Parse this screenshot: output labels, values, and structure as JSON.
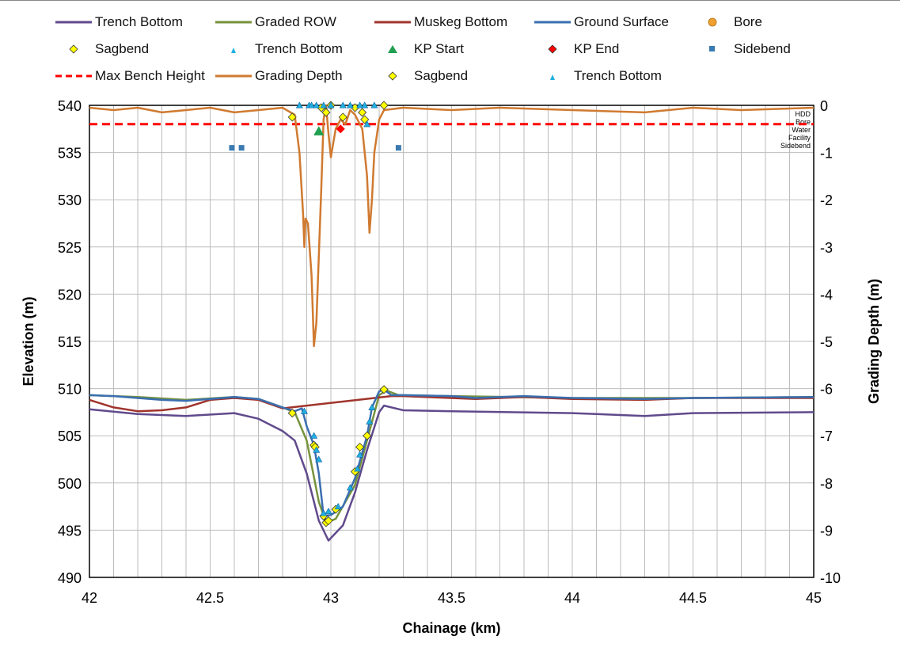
{
  "chart_data": {
    "type": "line",
    "xlabel": "Chainage (km)",
    "ylabel": "Elevation (m)",
    "y2label": "Grading Depth (m)",
    "xlim": [
      42,
      45
    ],
    "ylim": [
      490,
      540
    ],
    "y2lim": [
      -10,
      0
    ],
    "x_ticks": [
      "42",
      "42.5",
      "43",
      "43.5",
      "44",
      "44.5",
      "45"
    ],
    "y_ticks": [
      "540",
      "535",
      "530",
      "525",
      "520",
      "515",
      "510",
      "505",
      "500",
      "495",
      "490"
    ],
    "y2_ticks": [
      "0",
      "-1",
      "-2",
      "-3",
      "-4",
      "-5",
      "-6",
      "-7",
      "-8",
      "-9",
      "-10"
    ],
    "grid": true,
    "legend_position": "top",
    "annotations": [
      "HDD",
      "Bore",
      "Water",
      "Facility",
      "Sidebend"
    ],
    "series": [
      {
        "name": "Trench Bottom",
        "type": "line",
        "axis": "left",
        "color": "#604a8c",
        "x": [
          42.0,
          42.2,
          42.4,
          42.6,
          42.7,
          42.8,
          42.85,
          42.9,
          42.95,
          42.99,
          43.05,
          43.1,
          43.15,
          43.2,
          43.22,
          43.3,
          43.5,
          44.0,
          44.3,
          44.5,
          45.0
        ],
        "y": [
          507.8,
          507.3,
          507.1,
          507.4,
          506.8,
          505.5,
          504.5,
          501.0,
          496.0,
          493.9,
          495.5,
          499.0,
          503.5,
          507.5,
          508.2,
          507.7,
          507.6,
          507.4,
          507.1,
          507.4,
          507.5
        ]
      },
      {
        "name": "Graded ROW",
        "type": "line",
        "axis": "left",
        "color": "#77933c",
        "x": [
          42.0,
          42.2,
          42.4,
          42.6,
          42.7,
          42.8,
          42.85,
          42.9,
          42.95,
          42.98,
          43.02,
          43.1,
          43.15,
          43.2,
          43.23,
          43.28,
          43.5,
          44.0,
          44.5,
          45.0
        ],
        "y": [
          509.3,
          509.1,
          508.8,
          509.1,
          508.9,
          508.0,
          507.5,
          504.5,
          498.0,
          495.8,
          496.2,
          499.8,
          504.5,
          509.3,
          509.8,
          509.3,
          509.2,
          509.0,
          509.0,
          509.1
        ]
      },
      {
        "name": "Muskeg Bottom",
        "type": "line",
        "axis": "left",
        "color": "#a0342c",
        "x": [
          42.0,
          42.05,
          42.1,
          42.2,
          42.3,
          42.4,
          42.5,
          42.6,
          42.7,
          42.8,
          43.25,
          43.3,
          43.6,
          43.8,
          44.0,
          44.3,
          44.5,
          45.0
        ],
        "y": [
          508.8,
          508.4,
          508.0,
          507.6,
          507.7,
          508.0,
          508.8,
          509.0,
          508.8,
          507.9,
          509.2,
          509.2,
          508.9,
          509.1,
          508.9,
          508.8,
          509.0,
          509.0
        ]
      },
      {
        "name": "Ground Surface",
        "type": "line",
        "axis": "left",
        "color": "#3a6fb0",
        "x": [
          42.0,
          42.1,
          42.2,
          42.3,
          42.4,
          42.5,
          42.6,
          42.7,
          42.8,
          42.85,
          42.88,
          42.9,
          42.93,
          42.95,
          42.97,
          43.0,
          43.05,
          43.1,
          43.15,
          43.17,
          43.2,
          43.22,
          43.25,
          43.3,
          43.5,
          43.6,
          43.8,
          44.0,
          44.3,
          44.5,
          45.0
        ],
        "y": [
          509.3,
          509.2,
          509.0,
          508.8,
          508.7,
          508.9,
          509.1,
          508.9,
          508.0,
          507.6,
          507.9,
          506.0,
          504.0,
          501.0,
          496.5,
          496.6,
          497.5,
          500.5,
          505.0,
          508.0,
          509.7,
          509.9,
          509.3,
          509.3,
          509.2,
          509.0,
          509.2,
          509.0,
          508.9,
          509.0,
          509.1
        ]
      },
      {
        "name": "Max Bench Height",
        "type": "line",
        "axis": "right",
        "color": "#ff0000",
        "dashed": true,
        "x": [
          42.0,
          45.0
        ],
        "y": [
          -0.4,
          -0.4
        ]
      },
      {
        "name": "Grading Depth",
        "type": "line",
        "axis": "right",
        "color": "#d07a30",
        "x": [
          42.0,
          42.1,
          42.2,
          42.3,
          42.4,
          42.5,
          42.6,
          42.7,
          42.8,
          42.85,
          42.87,
          42.885,
          42.89,
          42.895,
          42.905,
          42.92,
          42.93,
          42.94,
          42.96,
          42.97,
          42.98,
          42.99,
          43.0,
          43.01,
          43.02,
          43.04,
          43.06,
          43.08,
          43.1,
          43.13,
          43.15,
          43.16,
          43.17,
          43.18,
          43.2,
          43.22,
          43.3,
          43.5,
          43.7,
          44.0,
          44.3,
          44.5,
          44.7,
          45.0
        ],
        "y": [
          -0.05,
          -0.1,
          -0.05,
          -0.15,
          -0.1,
          -0.05,
          -0.15,
          -0.1,
          -0.05,
          -0.2,
          -1.0,
          -2.3,
          -3.0,
          -2.4,
          -2.5,
          -3.6,
          -5.1,
          -4.6,
          -1.8,
          -0.3,
          0,
          -0.6,
          -1.1,
          -0.8,
          -0.5,
          -0.3,
          -0.4,
          -0.1,
          -0.2,
          -0.5,
          -1.5,
          -2.7,
          -2.0,
          -1.0,
          -0.3,
          -0.1,
          -0.05,
          -0.1,
          -0.05,
          -0.1,
          -0.15,
          -0.05,
          -0.1,
          -0.05
        ]
      },
      {
        "name": "Bore",
        "type": "scatter",
        "axis": "right",
        "color": "#f0a030",
        "x": [],
        "y": []
      },
      {
        "name": "Sagbend",
        "type": "scatter",
        "axis": "left",
        "color": "#ffff00",
        "marker": "diamond",
        "x": [
          42.84,
          42.93,
          42.935,
          42.97,
          42.98,
          42.99,
          43.02,
          43.1,
          43.12,
          43.15,
          43.22
        ],
        "y": [
          507.4,
          504.0,
          503.8,
          496.5,
          495.8,
          496.0,
          497.2,
          501.2,
          503.8,
          505.0,
          509.9
        ]
      },
      {
        "name": "Trench Bottom",
        "type": "scatter",
        "axis": "left",
        "color": "#20b0e0",
        "marker": "triangle",
        "x": [
          42.89,
          42.93,
          42.94,
          42.95,
          42.97,
          42.99,
          43.03,
          43.08,
          43.11,
          43.12,
          43.16,
          43.17
        ],
        "y": [
          507.6,
          505.0,
          503.5,
          502.5,
          496.8,
          497.0,
          497.5,
          499.5,
          501.5,
          503.0,
          506.5,
          508.0
        ]
      },
      {
        "name": "KP Start",
        "type": "scatter",
        "axis": "right",
        "color": "#20a050",
        "marker": "triangle",
        "x": [
          42.95
        ],
        "y": [
          -0.55
        ]
      },
      {
        "name": "KP End",
        "type": "scatter",
        "axis": "right",
        "color": "#ff0000",
        "marker": "diamond",
        "x": [
          43.04
        ],
        "y": [
          -0.5
        ]
      },
      {
        "name": "Sidebend",
        "type": "scatter",
        "axis": "right",
        "color": "#3a7ab0",
        "marker": "square",
        "x": [
          42.59,
          42.63,
          43.28
        ],
        "y": [
          -0.9,
          -0.9,
          -0.9
        ]
      },
      {
        "name": "Sagbend",
        "type": "scatter",
        "axis": "right",
        "color": "#ffff00",
        "marker": "diamond",
        "x": [
          42.84,
          42.96,
          42.98,
          43.0,
          43.05,
          43.1,
          43.13,
          43.14,
          43.22
        ],
        "y": [
          -0.25,
          -0.05,
          -0.15,
          0,
          -0.25,
          -0.05,
          -0.15,
          -0.3,
          0
        ]
      },
      {
        "name": "Trench Bottom",
        "type": "scatter",
        "axis": "right",
        "color": "#20b0e0",
        "marker": "triangle",
        "x": [
          42.87,
          42.91,
          42.92,
          42.94,
          42.97,
          43.0,
          43.05,
          43.08,
          43.12,
          43.14,
          43.15,
          43.18
        ],
        "y": [
          0,
          0,
          0,
          0,
          0,
          0,
          0,
          0,
          0,
          0,
          -0.4,
          0
        ]
      }
    ]
  }
}
